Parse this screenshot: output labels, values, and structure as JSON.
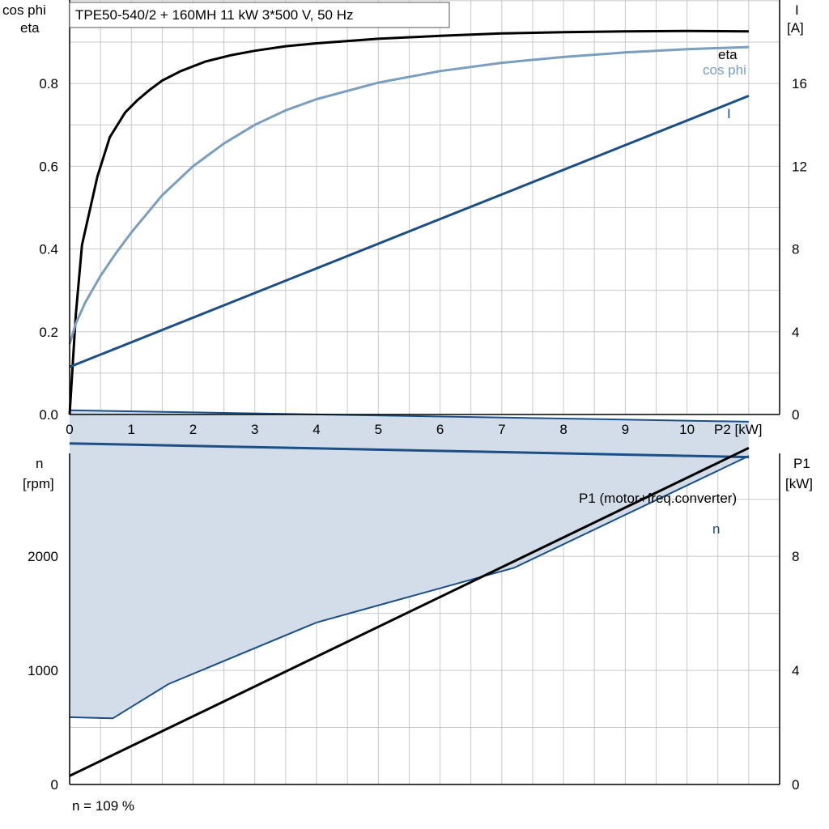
{
  "title": "TPE50-540/2 + 160MH   11 kW   3*500 V, 50 Hz",
  "footer": "n = 109 %",
  "colors": {
    "eta": "#000000",
    "cos_phi": "#7b9ebf",
    "current": "#1b4f86",
    "n": "#1b4f86",
    "n_area": "#d2dde9",
    "p1": "#000000",
    "grid": "#c8c8c8"
  },
  "chart_data": [
    {
      "type": "line",
      "x_axis": {
        "label": "P2 [kW]",
        "range": [
          0,
          11.5
        ],
        "ticks": [
          0,
          1,
          2,
          3,
          4,
          5,
          6,
          7,
          8,
          9,
          10
        ]
      },
      "y_left": {
        "label_line1": "cos phi",
        "label_line2": "eta",
        "range": [
          0,
          1.08
        ],
        "ticks": [
          0.0,
          0.2,
          0.4,
          0.6,
          0.8
        ],
        "tick_labels": [
          "0.0",
          "0.2",
          "0.4",
          "0.6",
          "0.8"
        ]
      },
      "y_right": {
        "label_line1": "I",
        "label_line2": "[A]",
        "range": [
          0,
          21.6
        ],
        "ticks": [
          0,
          4,
          8,
          12,
          16
        ],
        "tick_labels": [
          "0",
          "4",
          "8",
          "12",
          "16"
        ]
      },
      "grid": true,
      "series": [
        {
          "name": "eta",
          "axis": "left",
          "key": "eta",
          "x": [
            0,
            0.1,
            0.2,
            0.45,
            0.65,
            0.9,
            1.1,
            1.3,
            1.5,
            1.8,
            2.2,
            2.6,
            3.0,
            3.5,
            4.0,
            5.0,
            6.0,
            7.0,
            8.0,
            9.0,
            10.0,
            11.0
          ],
          "y": [
            0,
            0.24,
            0.41,
            0.575,
            0.67,
            0.73,
            0.76,
            0.785,
            0.807,
            0.83,
            0.853,
            0.868,
            0.879,
            0.89,
            0.897,
            0.908,
            0.915,
            0.921,
            0.924,
            0.926,
            0.927,
            0.926
          ]
        },
        {
          "name": "cos phi",
          "axis": "left",
          "key": "cos_phi",
          "x": [
            0,
            0.1,
            0.25,
            0.5,
            0.75,
            1.0,
            1.5,
            2.0,
            2.5,
            3.0,
            3.5,
            4.0,
            5.0,
            6.0,
            7.0,
            8.0,
            9.0,
            10.0,
            11.0
          ],
          "y": [
            0.17,
            0.22,
            0.27,
            0.335,
            0.39,
            0.44,
            0.53,
            0.6,
            0.655,
            0.7,
            0.735,
            0.762,
            0.802,
            0.83,
            0.85,
            0.864,
            0.875,
            0.883,
            0.888
          ]
        },
        {
          "name": "I",
          "axis": "right",
          "key": "current",
          "x": [
            0,
            11.0
          ],
          "y": [
            2.3,
            15.4
          ]
        }
      ]
    },
    {
      "type": "line",
      "x_axis": {
        "range": [
          0,
          11.5
        ]
      },
      "y_left": {
        "label_line1": "n",
        "label_line2": "[rpm]",
        "range": [
          0,
          3300
        ],
        "ticks": [
          0,
          1000,
          2000
        ],
        "tick_labels": [
          "0",
          "1000",
          "2000"
        ]
      },
      "y_right": {
        "label_line1": "P1",
        "label_line2": "[kW]",
        "range": [
          0,
          13.2
        ],
        "ticks": [
          0,
          4,
          8
        ],
        "tick_labels": [
          "0",
          "4",
          "8"
        ]
      },
      "grid": true,
      "n_area": {
        "upper_x": [
          0,
          11.0
        ],
        "upper_y": [
          3280,
          3180
        ],
        "lower_x": [
          0,
          0.7,
          1.6,
          4.0,
          7.2,
          11.0
        ],
        "lower_y": [
          590,
          580,
          880,
          1420,
          1900,
          2880
        ]
      },
      "series": [
        {
          "name": "n",
          "axis": "left",
          "key": "n",
          "x": [
            0,
            11.0
          ],
          "y": [
            2990,
            2870
          ]
        },
        {
          "name": "P1 (motor+freq.converter)",
          "axis": "right",
          "key": "p1",
          "x": [
            0,
            11.0
          ],
          "y": [
            0.3,
            11.8
          ]
        }
      ]
    }
  ]
}
